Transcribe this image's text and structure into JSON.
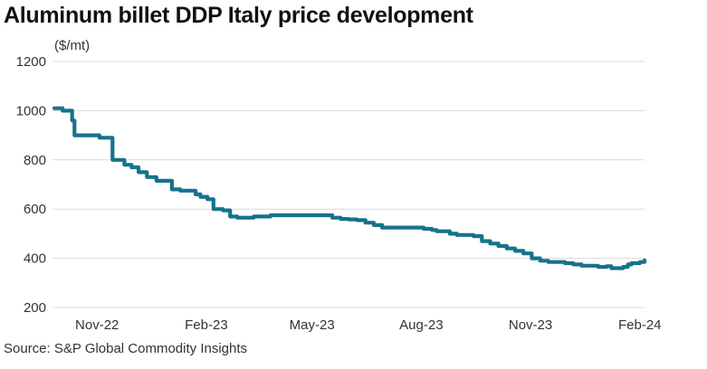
{
  "chart_data": {
    "type": "line",
    "title": "Aluminum billet DDP Italy price development",
    "unit_label": "($/mt)",
    "source": "Source: S&P Global Commodity Insights",
    "ylim": [
      200,
      1200
    ],
    "yticks": [
      200,
      400,
      600,
      800,
      1000,
      1200
    ],
    "xlim": [
      "2022-09-26",
      "2024-02-05"
    ],
    "xticks": [
      {
        "label": "Nov-22",
        "date": "2022-11-01"
      },
      {
        "label": "Feb-23",
        "date": "2023-02-01"
      },
      {
        "label": "May-23",
        "date": "2023-05-01"
      },
      {
        "label": "Aug-23",
        "date": "2023-08-01"
      },
      {
        "label": "Nov-23",
        "date": "2023-11-01"
      },
      {
        "label": "Feb-24",
        "date": "2024-02-01"
      }
    ],
    "grid": true,
    "color": "#17728b",
    "series": [
      {
        "x": [
          "2022-09-26",
          "2022-09-29",
          "2022-10-03",
          "2022-10-06",
          "2022-10-11",
          "2022-10-13",
          "2022-10-24",
          "2022-10-27",
          "2022-11-01",
          "2022-11-03",
          "2022-11-14",
          "2022-11-18",
          "2022-11-21",
          "2022-11-24",
          "2022-11-30",
          "2022-12-06",
          "2022-12-13",
          "2022-12-21",
          "2023-01-03",
          "2023-01-10",
          "2023-01-17",
          "2023-01-23",
          "2023-01-27",
          "2023-02-02",
          "2023-02-07",
          "2023-02-15",
          "2023-02-21",
          "2023-02-27",
          "2023-03-06",
          "2023-03-13",
          "2023-03-20",
          "2023-03-27",
          "2023-04-03",
          "2023-04-11",
          "2023-04-18",
          "2023-04-25",
          "2023-05-02",
          "2023-05-09",
          "2023-05-12",
          "2023-05-18",
          "2023-05-25",
          "2023-06-01",
          "2023-06-08",
          "2023-06-15",
          "2023-06-22",
          "2023-06-29",
          "2023-07-06",
          "2023-07-13",
          "2023-07-20",
          "2023-07-27",
          "2023-08-03",
          "2023-08-10",
          "2023-08-14",
          "2023-08-18",
          "2023-08-25",
          "2023-08-31",
          "2023-09-07",
          "2023-09-14",
          "2023-09-21",
          "2023-09-28",
          "2023-10-05",
          "2023-10-12",
          "2023-10-19",
          "2023-10-26",
          "2023-11-02",
          "2023-11-09",
          "2023-11-16",
          "2023-11-23",
          "2023-11-30",
          "2023-12-07",
          "2023-12-14",
          "2023-12-21",
          "2023-12-28",
          "2024-01-04",
          "2024-01-08",
          "2024-01-11",
          "2024-01-15",
          "2024-01-18",
          "2024-01-22",
          "2024-01-25",
          "2024-01-29",
          "2024-02-01",
          "2024-02-05"
        ],
        "y": [
          1010,
          1010,
          1000,
          1000,
          960,
          900,
          900,
          900,
          900,
          890,
          800,
          800,
          800,
          780,
          770,
          750,
          730,
          715,
          680,
          675,
          675,
          660,
          650,
          640,
          600,
          595,
          570,
          565,
          565,
          570,
          570,
          575,
          575,
          575,
          575,
          575,
          575,
          575,
          575,
          565,
          560,
          558,
          555,
          545,
          535,
          525,
          525,
          525,
          525,
          525,
          520,
          515,
          510,
          510,
          500,
          495,
          495,
          490,
          470,
          460,
          450,
          440,
          430,
          420,
          400,
          390,
          385,
          385,
          380,
          375,
          370,
          370,
          365,
          368,
          360,
          360,
          360,
          365,
          375,
          380,
          380,
          385,
          392
        ]
      }
    ]
  }
}
